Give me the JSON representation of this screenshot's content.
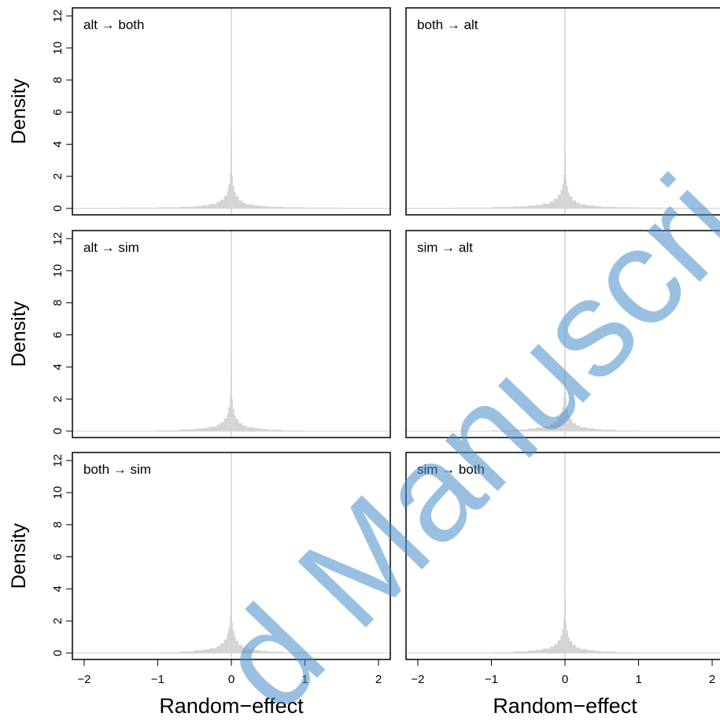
{
  "chart_data": [
    {
      "type": "histogram",
      "title": "alt → both",
      "ylabel": "Density",
      "color": "#d3d3d3",
      "bins": [
        -2.2,
        -1.5,
        -1,
        -0.7,
        -0.5,
        -0.4,
        -0.3,
        -0.2,
        -0.15,
        -0.1,
        -0.06,
        -0.04,
        -0.02,
        -0.01,
        0,
        0.01,
        0.02,
        0.04,
        0.06,
        0.1,
        0.15,
        0.2,
        0.3,
        0.4,
        0.5,
        0.7,
        1,
        1.5,
        2.2
      ],
      "values": [
        0.03,
        0.05,
        0.07,
        0.1,
        0.15,
        0.2,
        0.28,
        0.4,
        0.55,
        0.8,
        1.1,
        1.5,
        2.2,
        4.7,
        3.6,
        2.0,
        1.4,
        1.0,
        0.75,
        0.5,
        0.35,
        0.25,
        0.18,
        0.14,
        0.1,
        0.07,
        0.05,
        0.03
      ],
      "xlim": [
        -2.16,
        2.16
      ],
      "ylim": [
        -0.4,
        12.5
      ],
      "yticks": [
        0,
        2,
        4,
        6,
        8,
        10,
        12
      ]
    },
    {
      "type": "histogram",
      "title": "both → alt",
      "color": "#d3d3d3",
      "bins": [
        -2.2,
        -1.5,
        -1,
        -0.7,
        -0.5,
        -0.4,
        -0.3,
        -0.2,
        -0.15,
        -0.1,
        -0.06,
        -0.04,
        -0.02,
        -0.01,
        0,
        0.01,
        0.02,
        0.04,
        0.06,
        0.1,
        0.15,
        0.2,
        0.3,
        0.4,
        0.5,
        0.7,
        1,
        1.5,
        2.2
      ],
      "values": [
        0.03,
        0.05,
        0.08,
        0.12,
        0.18,
        0.22,
        0.3,
        0.42,
        0.6,
        0.85,
        1.15,
        1.5,
        2.1,
        4.4,
        3.4,
        1.9,
        1.4,
        1.0,
        0.75,
        0.5,
        0.35,
        0.25,
        0.18,
        0.14,
        0.1,
        0.07,
        0.05,
        0.04
      ],
      "xlim": [
        -2.16,
        2.16
      ],
      "ylim": [
        -0.4,
        12.5
      ]
    },
    {
      "type": "histogram",
      "title": "alt → sim",
      "ylabel": "Density",
      "color": "#d3d3d3",
      "bins": [
        -2.2,
        -1.5,
        -1,
        -0.7,
        -0.5,
        -0.4,
        -0.3,
        -0.2,
        -0.15,
        -0.1,
        -0.06,
        -0.04,
        -0.02,
        -0.01,
        0,
        0.01,
        0.02,
        0.04,
        0.06,
        0.1,
        0.15,
        0.2,
        0.3,
        0.4,
        0.5,
        0.7,
        1,
        1.5,
        2.2
      ],
      "values": [
        0,
        0.01,
        0.05,
        0.1,
        0.15,
        0.2,
        0.28,
        0.4,
        0.55,
        0.8,
        1.1,
        1.5,
        2.2,
        4.6,
        3.5,
        2.0,
        1.4,
        1.0,
        0.75,
        0.5,
        0.35,
        0.25,
        0.18,
        0.12,
        0.08,
        0.04,
        0.01,
        0
      ],
      "xlim": [
        -2.16,
        2.16
      ],
      "ylim": [
        -0.4,
        12.5
      ],
      "yticks": [
        0,
        2,
        4,
        6,
        8,
        10,
        12
      ]
    },
    {
      "type": "histogram",
      "title": "sim → alt",
      "color": "#d3d3d3",
      "bins": [
        -2.2,
        -1.5,
        -1,
        -0.7,
        -0.5,
        -0.4,
        -0.3,
        -0.2,
        -0.15,
        -0.1,
        -0.06,
        -0.04,
        -0.02,
        -0.01,
        0,
        0.01,
        0.02,
        0.04,
        0.06,
        0.1,
        0.15,
        0.2,
        0.3,
        0.4,
        0.5,
        0.7,
        1,
        1.5,
        2.2
      ],
      "values": [
        0,
        0.01,
        0.05,
        0.1,
        0.17,
        0.22,
        0.3,
        0.42,
        0.6,
        0.85,
        1.15,
        1.5,
        2.2,
        4.7,
        3.6,
        2.0,
        1.4,
        1.0,
        0.75,
        0.5,
        0.35,
        0.25,
        0.18,
        0.12,
        0.08,
        0.04,
        0.01,
        0
      ],
      "xlim": [
        -2.16,
        2.16
      ],
      "ylim": [
        -0.4,
        12.5
      ]
    },
    {
      "type": "histogram",
      "title": "both → sim",
      "ylabel": "Density",
      "xlabel": "Random−effect",
      "color": "#d3d3d3",
      "bins": [
        -2.2,
        -1.5,
        -1,
        -0.7,
        -0.5,
        -0.4,
        -0.3,
        -0.2,
        -0.15,
        -0.1,
        -0.06,
        -0.04,
        -0.02,
        -0.01,
        0,
        0.01,
        0.02,
        0.04,
        0.06,
        0.1,
        0.15,
        0.2,
        0.3,
        0.4,
        0.5,
        0.7,
        1,
        1.5,
        2.2
      ],
      "values": [
        0,
        0.01,
        0.05,
        0.1,
        0.17,
        0.22,
        0.3,
        0.42,
        0.6,
        0.85,
        1.2,
        1.6,
        2.2,
        4.2,
        3.3,
        1.9,
        1.4,
        1.0,
        0.75,
        0.5,
        0.35,
        0.25,
        0.18,
        0.12,
        0.08,
        0.04,
        0.01,
        0
      ],
      "xlim": [
        -2.16,
        2.16
      ],
      "ylim": [
        -0.4,
        12.5
      ],
      "yticks": [
        0,
        2,
        4,
        6,
        8,
        10,
        12
      ],
      "xticks": [
        {
          "value": -2,
          "label": "−2"
        },
        {
          "value": -1,
          "label": "−1"
        },
        0,
        1,
        2
      ]
    },
    {
      "type": "histogram",
      "title": "sim → both",
      "xlabel": "Random−effect",
      "color": "#d3d3d3",
      "bins": [
        -2.2,
        -1.5,
        -1,
        -0.7,
        -0.5,
        -0.4,
        -0.3,
        -0.2,
        -0.15,
        -0.1,
        -0.06,
        -0.04,
        -0.02,
        -0.01,
        0,
        0.01,
        0.02,
        0.04,
        0.06,
        0.1,
        0.15,
        0.2,
        0.3,
        0.4,
        0.5,
        0.7,
        1,
        1.5,
        2.2
      ],
      "values": [
        0,
        0.01,
        0.05,
        0.1,
        0.15,
        0.2,
        0.28,
        0.4,
        0.55,
        0.8,
        1.1,
        1.5,
        2.1,
        4.3,
        3.4,
        1.9,
        1.4,
        1.0,
        0.75,
        0.5,
        0.35,
        0.25,
        0.18,
        0.12,
        0.08,
        0.04,
        0.01,
        0
      ],
      "xlim": [
        -2.16,
        2.16
      ],
      "ylim": [
        -0.4,
        12.5
      ],
      "xticks": [
        {
          "value": -2,
          "label": "−2"
        },
        {
          "value": -1,
          "label": "−1"
        },
        0,
        1,
        2
      ]
    }
  ],
  "watermark": "d Manuscri"
}
